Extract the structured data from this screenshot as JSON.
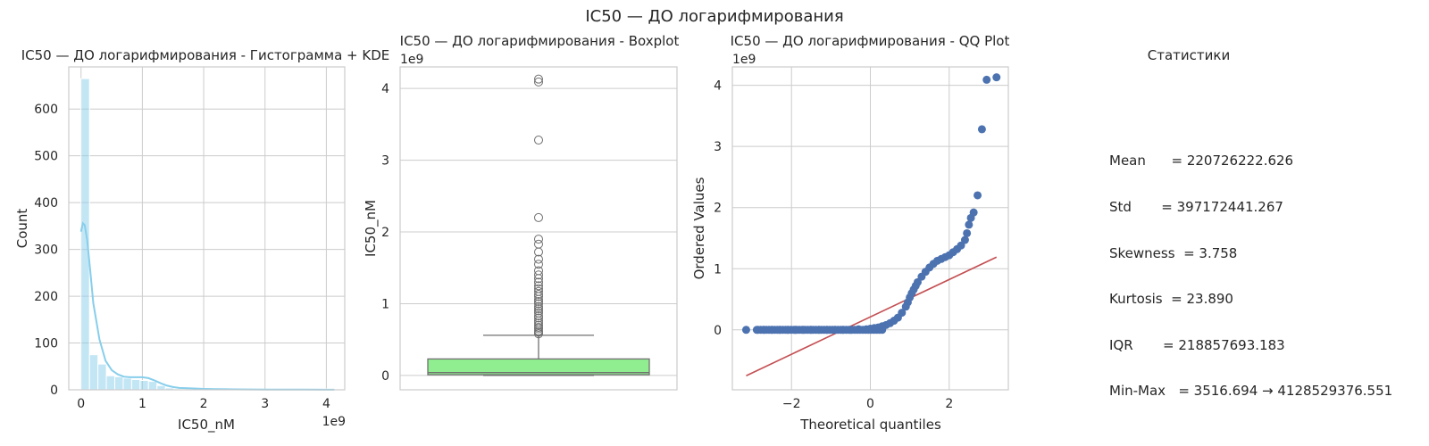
{
  "suptitle": "IC50 — ДО логарифмирования",
  "chart_data": [
    {
      "type": "bar",
      "title": "IC50 — ДО логарифмирования - Гистограмма + KDE",
      "xlabel": "IC50_nM",
      "ylabel": "Count",
      "x_offset_text": "1e9",
      "xlim": [
        -0.2,
        4.3
      ],
      "ylim": [
        0,
        690
      ],
      "xticks": [
        0,
        1,
        2,
        3,
        4
      ],
      "yticks": [
        0,
        100,
        200,
        300,
        400,
        500,
        600
      ],
      "bin_edges": [
        0.0,
        0.138,
        0.275,
        0.413,
        0.55,
        0.688,
        0.825,
        0.963,
        1.1,
        1.238,
        1.375,
        1.513,
        1.65,
        1.788,
        1.925,
        2.063,
        2.2,
        2.338,
        2.475,
        2.613,
        2.75,
        2.888,
        3.025,
        3.163,
        3.3,
        3.438,
        3.575,
        3.713,
        3.85,
        3.988,
        4.125
      ],
      "counts": [
        665,
        75,
        55,
        30,
        28,
        25,
        22,
        20,
        18,
        9,
        4,
        2,
        2,
        1,
        1,
        1,
        0,
        1,
        0,
        0,
        0,
        0,
        0,
        0,
        1,
        0,
        0,
        0,
        0,
        2
      ],
      "kde": {
        "x": [
          0.0,
          0.03,
          0.06,
          0.1,
          0.15,
          0.2,
          0.3,
          0.4,
          0.5,
          0.6,
          0.7,
          0.8,
          0.9,
          1.0,
          1.1,
          1.2,
          1.3,
          1.4,
          1.5,
          1.6,
          1.8,
          2.0,
          2.2,
          2.5,
          3.0,
          3.3,
          3.6,
          4.0,
          4.13
        ],
        "y": [
          338,
          356,
          352,
          320,
          255,
          185,
          108,
          62,
          42,
          33,
          28,
          27,
          27,
          27,
          25,
          20,
          14,
          9,
          6,
          4,
          3,
          2,
          1.5,
          1,
          0.5,
          0.5,
          0.5,
          0.3,
          0.3
        ]
      },
      "colors": {
        "bar": "#87ceeb",
        "kde": "#87ceeb"
      },
      "grid": true
    },
    {
      "type": "boxplot",
      "title": "IC50 — ДО логарифмирования - Boxplot",
      "xlabel": "",
      "ylabel": "IC50_nM",
      "y_offset_text": "1e9",
      "ylim": [
        -0.2,
        4.3
      ],
      "yticks": [
        0,
        1,
        2,
        3,
        4
      ],
      "box": {
        "whislo": 0.0,
        "q1": 0.01,
        "median": 0.04,
        "q3": 0.23,
        "whishi": 0.56
      },
      "outliers": [
        0.58,
        0.6,
        0.62,
        0.65,
        0.67,
        0.7,
        0.73,
        0.76,
        0.8,
        0.83,
        0.87,
        0.9,
        0.93,
        0.96,
        1.0,
        1.03,
        1.06,
        1.1,
        1.13,
        1.17,
        1.21,
        1.25,
        1.3,
        1.35,
        1.4,
        1.46,
        1.55,
        1.62,
        1.72,
        1.83,
        1.9,
        2.2,
        3.28,
        4.09,
        4.13
      ],
      "colors": {
        "box": "#90ee90",
        "lines": "#707070"
      },
      "grid": true
    },
    {
      "type": "scatter",
      "title": "IC50 — ДО логарифмирования - QQ Plot",
      "xlabel": "Theoretical quantiles",
      "ylabel": "Ordered Values",
      "y_offset_text": "1e9",
      "xlim": [
        -3.5,
        3.5
      ],
      "ylim": [
        -0.98,
        4.3
      ],
      "xticks": [
        -2,
        0,
        2
      ],
      "yticks": [
        0,
        1,
        2,
        3,
        4
      ],
      "points": {
        "x": [
          -3.15,
          -2.88,
          -2.7,
          -2.5,
          -2.3,
          -2.1,
          -1.9,
          -1.7,
          -1.5,
          -1.3,
          -1.1,
          -0.9,
          -0.7,
          -0.5,
          -0.3,
          -0.1,
          0.0,
          0.1,
          0.2,
          0.3,
          0.4,
          0.5,
          0.6,
          0.7,
          0.8,
          0.9,
          0.95,
          1.0,
          1.05,
          1.1,
          1.15,
          1.2,
          1.3,
          1.4,
          1.5,
          1.6,
          1.7,
          1.8,
          1.9,
          2.0,
          2.1,
          2.2,
          2.3,
          2.4,
          2.45,
          2.5,
          2.55,
          2.62,
          2.72,
          2.83,
          2.95,
          3.2
        ],
        "y": [
          0.0,
          0.0,
          0.0,
          0.0,
          0.0,
          0.0,
          0.0,
          0.0,
          0.0,
          0.0,
          0.0,
          0.0,
          0.0,
          0.0,
          0.01,
          0.01,
          0.02,
          0.03,
          0.04,
          0.06,
          0.08,
          0.11,
          0.15,
          0.2,
          0.28,
          0.38,
          0.45,
          0.53,
          0.6,
          0.66,
          0.72,
          0.78,
          0.87,
          0.95,
          1.02,
          1.08,
          1.13,
          1.16,
          1.19,
          1.22,
          1.27,
          1.32,
          1.38,
          1.47,
          1.58,
          1.72,
          1.83,
          1.92,
          2.2,
          3.28,
          4.09,
          4.13
        ]
      },
      "fit_line": {
        "x": [
          -3.15,
          3.2
        ],
        "y": [
          -0.75,
          1.19
        ]
      },
      "colors": {
        "points": "#4c72b0",
        "line": "#c44e52"
      },
      "grid": true
    }
  ],
  "stats_panel": {
    "title": "Статистики",
    "lines": [
      "Mean      = 220726222.626",
      "Std       = 397172441.267",
      "Skewness  = 3.758",
      "Kurtosis  = 23.890",
      "IQR       = 218857693.183",
      "Min-Max   = 3516.694 → 4128529376.551"
    ]
  }
}
